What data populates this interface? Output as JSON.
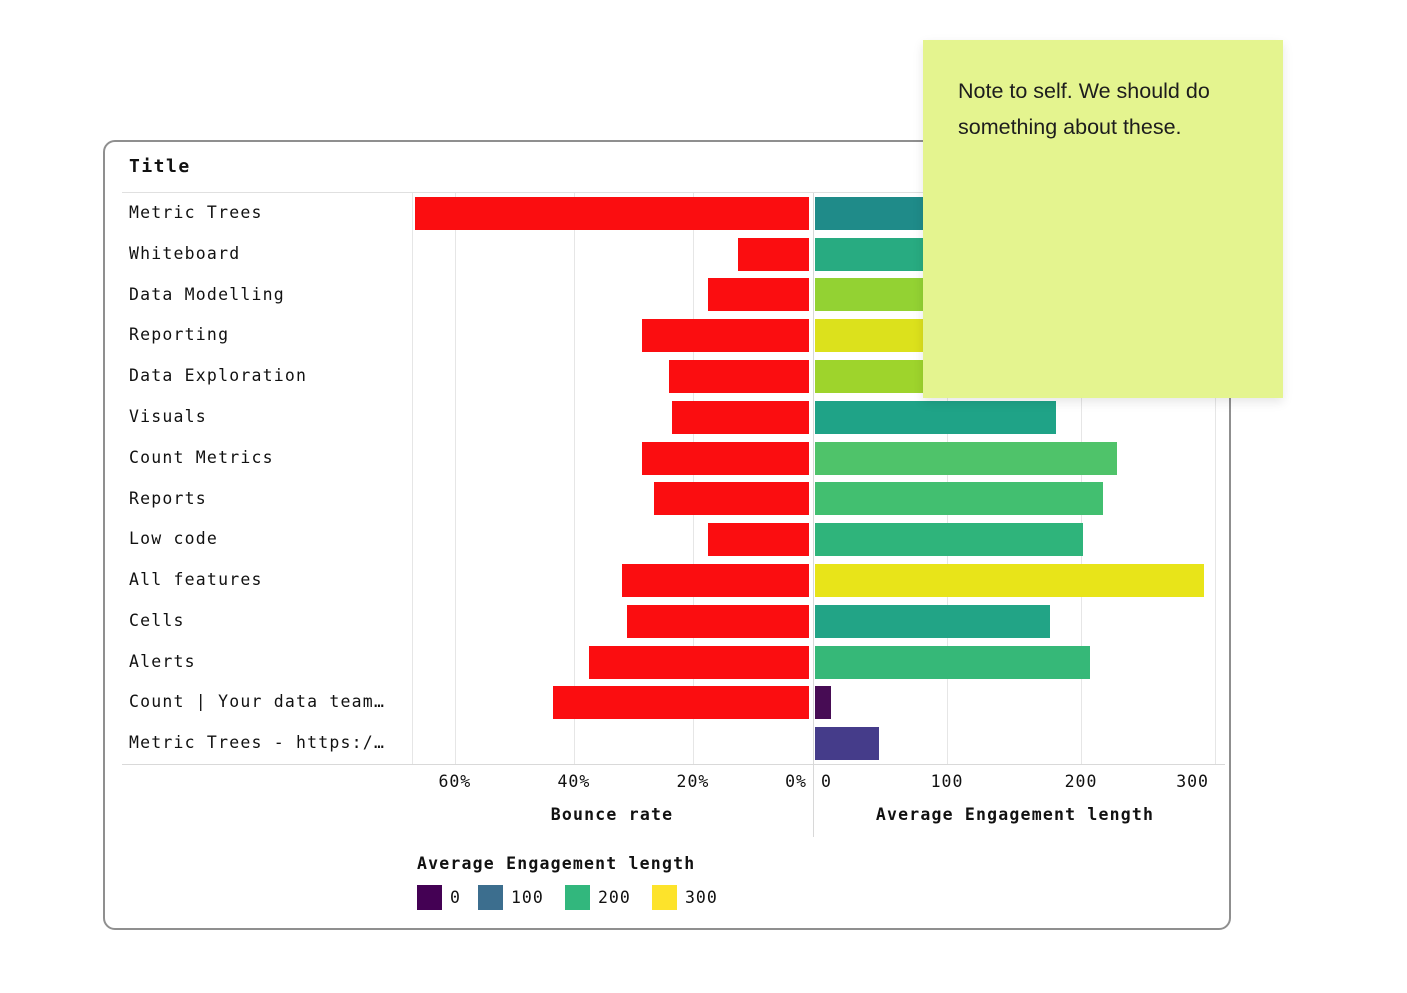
{
  "card": {
    "title": "Title"
  },
  "note": {
    "text": "Note to self. We should do something about these.",
    "bg_color": "#e4f48f"
  },
  "chart_data": {
    "type": "bar",
    "title": "Title",
    "orientation": "horizontal-diverging",
    "left_axis": {
      "title": "Bounce rate",
      "tick_labels": [
        "60%",
        "40%",
        "20%",
        "0%"
      ],
      "tick_values": [
        60,
        40,
        20,
        0
      ],
      "max": 67.2,
      "bar_color": "#fb0d10"
    },
    "right_axis": {
      "title": "Average Engagement length",
      "tick_labels": [
        "0",
        "100",
        "200",
        "300"
      ],
      "tick_values": [
        0,
        100,
        200,
        300
      ],
      "max": 300
    },
    "rows": [
      {
        "label": "Metric Trees",
        "bounce_rate_pct": 67,
        "engagement": 140,
        "engagement_color": "#1f8b89"
      },
      {
        "label": "Whiteboard",
        "bounce_rate_pct": 12,
        "engagement": 190,
        "engagement_color": "#28ab81"
      },
      {
        "label": "Data Modelling",
        "bounce_rate_pct": 17,
        "engagement": 250,
        "engagement_color": "#93d233"
      },
      {
        "label": "Reporting",
        "bounce_rate_pct": 28,
        "engagement": 275,
        "engagement_color": "#dce11c"
      },
      {
        "label": "Data Exploration",
        "bounce_rate_pct": 23.5,
        "engagement": 255,
        "engagement_color": "#9ed42c"
      },
      {
        "label": "Visuals",
        "bounce_rate_pct": 23,
        "engagement": 180,
        "engagement_color": "#1fa387"
      },
      {
        "label": "Count Metrics",
        "bounce_rate_pct": 28,
        "engagement": 225,
        "engagement_color": "#4fc36a"
      },
      {
        "label": "Reports",
        "bounce_rate_pct": 26,
        "engagement": 215,
        "engagement_color": "#42bf70"
      },
      {
        "label": "Low code",
        "bounce_rate_pct": 17,
        "engagement": 200,
        "engagement_color": "#2fb47b"
      },
      {
        "label": "All features",
        "bounce_rate_pct": 31.5,
        "engagement": 290,
        "engagement_color": "#e8e419"
      },
      {
        "label": "Cells",
        "bounce_rate_pct": 30.5,
        "engagement": 175,
        "engagement_color": "#22a486"
      },
      {
        "label": "Alerts",
        "bounce_rate_pct": 37,
        "engagement": 205,
        "engagement_color": "#36b878"
      },
      {
        "label": "Count | Your data team…",
        "bounce_rate_pct": 43,
        "engagement": 12,
        "engagement_color": "#470c54"
      },
      {
        "label": "Metric Trees - https:/…",
        "bounce_rate_pct": 0,
        "engagement": 48,
        "engagement_color": "#453c8a"
      }
    ],
    "legend": {
      "title": "Average Engagement length",
      "entries": [
        {
          "label": "0",
          "color": "#440154"
        },
        {
          "label": "100",
          "color": "#3c6e8e"
        },
        {
          "label": "200",
          "color": "#32b77d"
        },
        {
          "label": "300",
          "color": "#fde32b"
        }
      ],
      "position": "bottom-left"
    }
  }
}
